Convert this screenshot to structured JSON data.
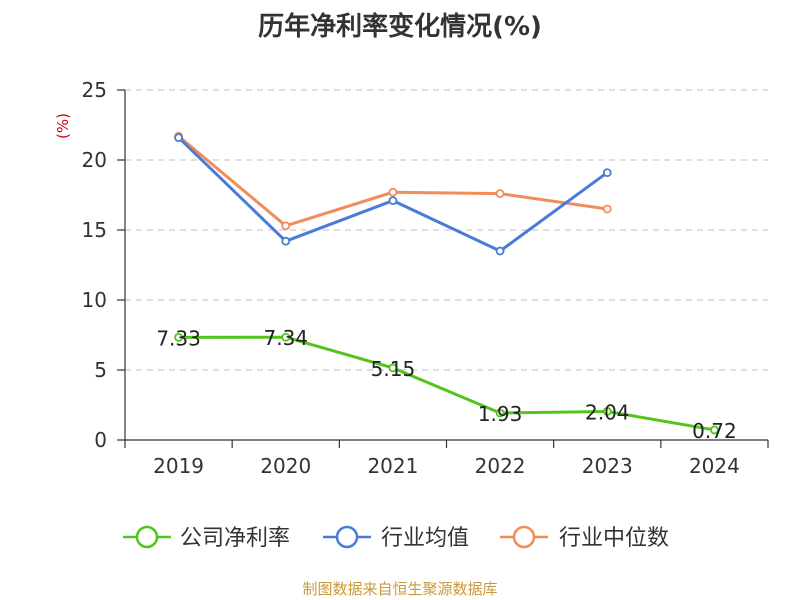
{
  "chart_data": {
    "type": "line",
    "title": "历年净利率变化情况(%)",
    "ylabel": "(%)",
    "xlabel": "",
    "categories": [
      "2019",
      "2020",
      "2021",
      "2022",
      "2023",
      "2024"
    ],
    "ylim": [
      0,
      25
    ],
    "yticks": [
      0,
      5,
      10,
      15,
      20,
      25
    ],
    "grid": true,
    "legend_position": "bottom",
    "series": [
      {
        "name": "公司净利率",
        "color": "#52c41a",
        "values": [
          7.33,
          7.34,
          5.15,
          1.93,
          2.04,
          0.72
        ],
        "labels": [
          "7.33",
          "7.34",
          "5.15",
          "1.93",
          "2.04",
          "0.72"
        ]
      },
      {
        "name": "行业均值",
        "color": "#4a7bd9",
        "values": [
          21.6,
          14.2,
          17.1,
          13.5,
          19.1,
          null
        ]
      },
      {
        "name": "行业中位数",
        "color": "#f28c5a",
        "values": [
          21.7,
          15.3,
          17.7,
          17.6,
          16.5,
          null
        ]
      }
    ]
  },
  "source": "制图数据来自恒生聚源数据库"
}
